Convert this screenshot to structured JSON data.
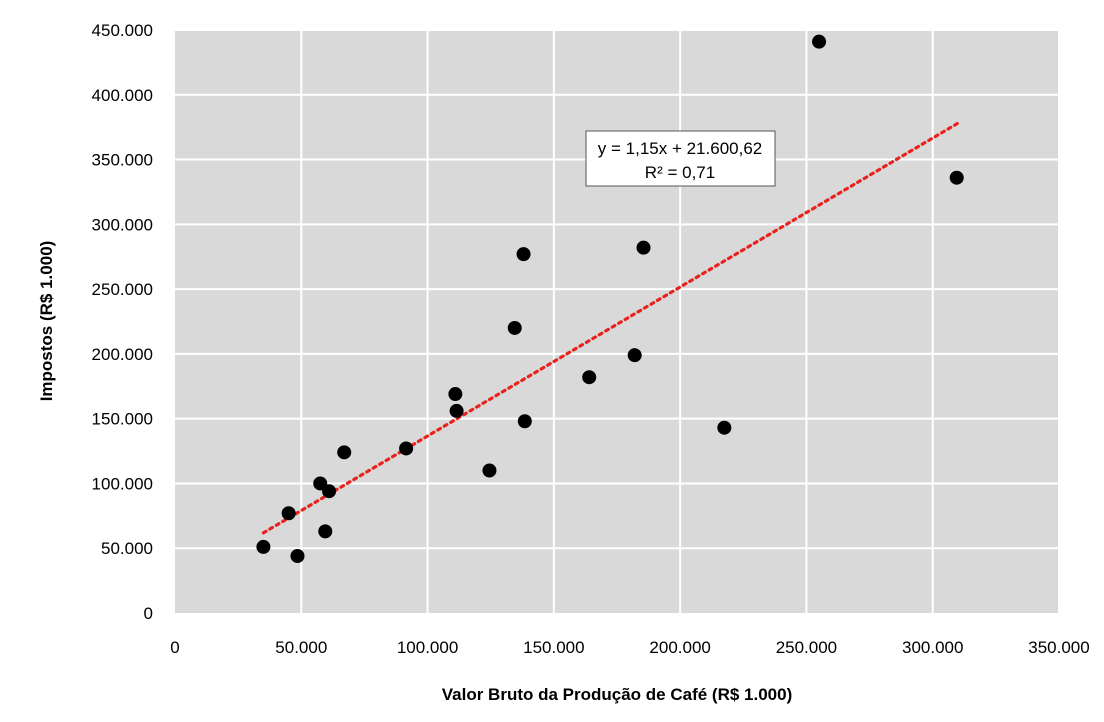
{
  "chart_data": {
    "type": "scatter",
    "xlabel": "Valor Bruto da Produção de Café (R$ 1.000)",
    "ylabel": "Impostos (R$ 1.000)",
    "xlim": [
      0,
      350000
    ],
    "ylim": [
      0,
      450000
    ],
    "x_ticks": [
      0,
      50000,
      100000,
      150000,
      200000,
      250000,
      300000,
      350000
    ],
    "y_ticks": [
      0,
      50000,
      100000,
      150000,
      200000,
      250000,
      300000,
      350000,
      400000,
      450000
    ],
    "x_tick_labels": [
      "0",
      "50.000",
      "100.000",
      "150.000",
      "200.000",
      "250.000",
      "300.000",
      "350.000"
    ],
    "y_tick_labels": [
      "0",
      "50.000",
      "100.000",
      "150.000",
      "200.000",
      "250.000",
      "300.000",
      "350.000",
      "400.000",
      "450.000"
    ],
    "grid": true,
    "background_color": "#d9d9d9",
    "marker_color": "#000000",
    "trendline_color": "#e8231d",
    "points": [
      {
        "x": 35000,
        "y": 51000
      },
      {
        "x": 45000,
        "y": 77000
      },
      {
        "x": 48500,
        "y": 44000
      },
      {
        "x": 57500,
        "y": 100000
      },
      {
        "x": 59500,
        "y": 63000
      },
      {
        "x": 61000,
        "y": 94000
      },
      {
        "x": 67000,
        "y": 124000
      },
      {
        "x": 91500,
        "y": 127000
      },
      {
        "x": 111000,
        "y": 169000
      },
      {
        "x": 111500,
        "y": 156000
      },
      {
        "x": 124500,
        "y": 110000
      },
      {
        "x": 134500,
        "y": 220000
      },
      {
        "x": 138000,
        "y": 277000
      },
      {
        "x": 138500,
        "y": 148000
      },
      {
        "x": 164000,
        "y": 182000
      },
      {
        "x": 182000,
        "y": 199000
      },
      {
        "x": 185500,
        "y": 282000
      },
      {
        "x": 217500,
        "y": 143000
      },
      {
        "x": 255000,
        "y": 441000
      },
      {
        "x": 309500,
        "y": 336000
      }
    ],
    "trendline": {
      "slope": 1.15,
      "intercept": 21600.62,
      "x_range": [
        35000,
        310000
      ],
      "equation": "y = 1,15x + 21.600,62",
      "r_squared": "R² = 0,71"
    }
  }
}
